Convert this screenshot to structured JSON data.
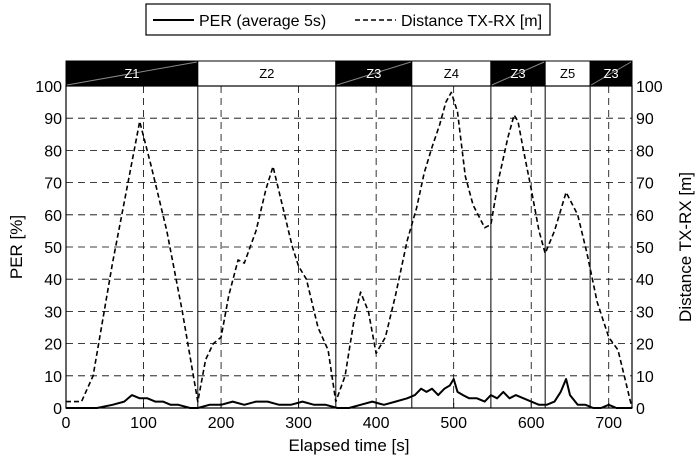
{
  "chart_data": {
    "type": "line",
    "xlabel": "Elapsed time [s]",
    "ylabel": "PER [%]",
    "y2label": "Distance TX-RX [m]",
    "xlim": [
      0,
      730
    ],
    "ylim": [
      0,
      100
    ],
    "y2lim": [
      0,
      100
    ],
    "xticks": [
      0,
      100,
      200,
      300,
      400,
      500,
      600,
      700
    ],
    "yticks": [
      0,
      10,
      20,
      30,
      40,
      50,
      60,
      70,
      80,
      90,
      100
    ],
    "grid": true,
    "legend_position": "top-center",
    "zones": [
      {
        "label": "Z1",
        "start": 0,
        "end": 170,
        "style": "dark"
      },
      {
        "label": "Z2",
        "start": 170,
        "end": 348,
        "style": "light"
      },
      {
        "label": "Z3",
        "start": 348,
        "end": 446,
        "style": "dark"
      },
      {
        "label": "Z4",
        "start": 446,
        "end": 548,
        "style": "light"
      },
      {
        "label": "Z3",
        "start": 548,
        "end": 618,
        "style": "dark"
      },
      {
        "label": "Z5",
        "start": 618,
        "end": 676,
        "style": "light"
      },
      {
        "label": "Z3",
        "start": 676,
        "end": 730,
        "style": "dark"
      }
    ],
    "series": [
      {
        "name": "PER (average 5s)",
        "axis": "left",
        "line_style": "solid",
        "x": [
          0,
          20,
          40,
          60,
          75,
          85,
          95,
          105,
          115,
          125,
          135,
          145,
          160,
          170,
          185,
          200,
          215,
          230,
          245,
          260,
          275,
          290,
          305,
          320,
          335,
          350,
          365,
          380,
          395,
          410,
          425,
          440,
          450,
          458,
          465,
          472,
          480,
          488,
          495,
          500,
          505,
          512,
          520,
          530,
          540,
          548,
          556,
          564,
          572,
          580,
          590,
          600,
          610,
          620,
          630,
          638,
          645,
          650,
          660,
          670,
          680,
          690,
          700,
          710,
          720,
          730
        ],
        "y": [
          0,
          0,
          0,
          1,
          2,
          4,
          3,
          3,
          2,
          2,
          1,
          1,
          0,
          0,
          1,
          1,
          2,
          1,
          2,
          2,
          1,
          1,
          2,
          1,
          1,
          0,
          0,
          1,
          2,
          1,
          2,
          3,
          4,
          6,
          5,
          6,
          4,
          6,
          7,
          9,
          5,
          4,
          3,
          3,
          2,
          4,
          3,
          5,
          3,
          4,
          3,
          2,
          1,
          1,
          2,
          5,
          9,
          4,
          1,
          1,
          0,
          0,
          1,
          0,
          0,
          0
        ]
      },
      {
        "name": "Distance TX-RX [m]",
        "axis": "right",
        "line_style": "dashed",
        "x": [
          0,
          20,
          35,
          60,
          80,
          95,
          110,
          130,
          150,
          170,
          180,
          190,
          200,
          210,
          222,
          230,
          245,
          258,
          267,
          280,
          292,
          300,
          310,
          325,
          338,
          348,
          360,
          372,
          380,
          390,
          400,
          412,
          425,
          440,
          452,
          462,
          472,
          482,
          490,
          497,
          505,
          515,
          525,
          540,
          548,
          558,
          570,
          578,
          583,
          590,
          600,
          610,
          618,
          630,
          645,
          660,
          672,
          685,
          700,
          712,
          722,
          730
        ],
        "y": [
          2,
          2,
          10,
          45,
          70,
          89,
          75,
          55,
          30,
          2,
          15,
          20,
          22,
          35,
          46,
          45,
          55,
          68,
          75,
          62,
          50,
          44,
          40,
          25,
          18,
          2,
          10,
          28,
          36,
          30,
          17,
          22,
          35,
          52,
          62,
          73,
          81,
          88,
          95,
          98,
          92,
          72,
          63,
          56,
          57,
          71,
          84,
          91,
          89,
          80,
          68,
          55,
          48,
          55,
          67,
          60,
          48,
          33,
          22,
          18,
          8,
          0
        ]
      }
    ]
  }
}
